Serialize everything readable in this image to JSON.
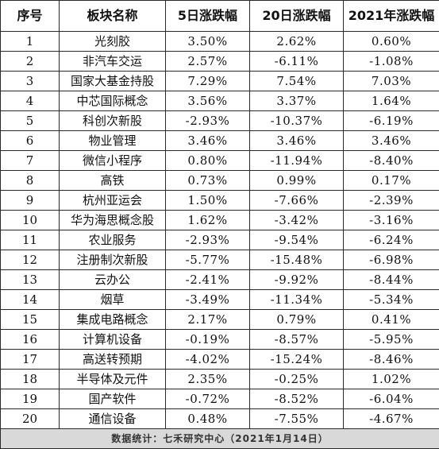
{
  "table": {
    "headers": [
      "序号",
      "板块名称",
      "5日涨跌幅",
      "20日涨跌幅",
      "2021年涨跌幅"
    ],
    "rows": [
      [
        "1",
        "光刻胶",
        "3.50%",
        "2.62%",
        "0.60%"
      ],
      [
        "2",
        "非汽车交运",
        "2.57%",
        "-6.11%",
        "-1.08%"
      ],
      [
        "3",
        "国家大基金持股",
        "7.29%",
        "7.54%",
        "7.03%"
      ],
      [
        "4",
        "中芯国际概念",
        "3.56%",
        "3.37%",
        "1.64%"
      ],
      [
        "5",
        "科创次新股",
        "-2.93%",
        "-10.37%",
        "-6.19%"
      ],
      [
        "6",
        "物业管理",
        "3.46%",
        "3.46%",
        "3.46%"
      ],
      [
        "7",
        "微信小程序",
        "0.80%",
        "-11.94%",
        "-8.40%"
      ],
      [
        "8",
        "高铁",
        "0.73%",
        "0.99%",
        "0.17%"
      ],
      [
        "9",
        "杭州亚运会",
        "1.50%",
        "-7.66%",
        "-2.39%"
      ],
      [
        "10",
        "华为海思概念股",
        "1.62%",
        "-3.42%",
        "-3.16%"
      ],
      [
        "11",
        "农业服务",
        "-2.93%",
        "-9.54%",
        "-6.24%"
      ],
      [
        "12",
        "注册制次新股",
        "-5.77%",
        "-15.48%",
        "-6.98%"
      ],
      [
        "13",
        "云办公",
        "-2.41%",
        "-9.92%",
        "-8.44%"
      ],
      [
        "14",
        "烟草",
        "-3.49%",
        "-11.34%",
        "-5.34%"
      ],
      [
        "15",
        "集成电路概念",
        "2.17%",
        "0.79%",
        "0.41%"
      ],
      [
        "16",
        "计算机设备",
        "-0.19%",
        "-8.57%",
        "-5.95%"
      ],
      [
        "17",
        "高送转预期",
        "-4.02%",
        "-15.24%",
        "-8.46%"
      ],
      [
        "18",
        "半导体及元件",
        "2.35%",
        "-0.25%",
        "1.02%"
      ],
      [
        "19",
        "国产软件",
        "-0.72%",
        "-8.52%",
        "-6.04%"
      ],
      [
        "20",
        "通信设备",
        "0.48%",
        "-7.55%",
        "-4.67%"
      ]
    ],
    "footer": "数据统计：七禾研究中心（2021年1月14日）"
  }
}
